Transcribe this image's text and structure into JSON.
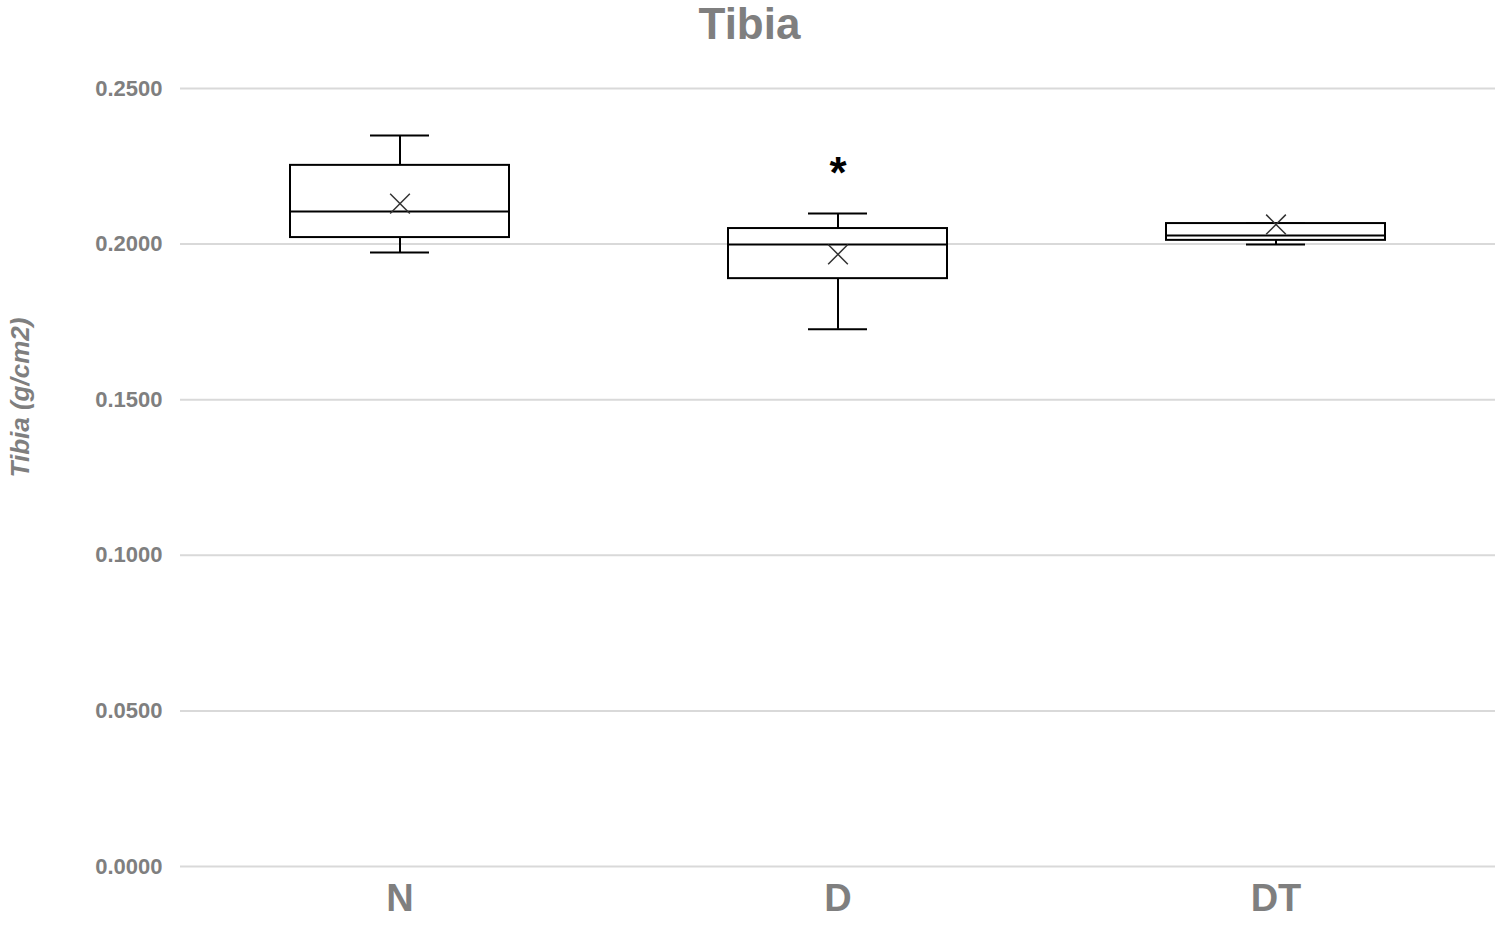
{
  "chart_data": {
    "type": "box",
    "title": "Tibia",
    "y_label": "Tibia (g/cm2)",
    "categories": [
      "N",
      "D",
      "DT"
    ],
    "whisker_low": [
      0.1973,
      0.1726,
      0.1999
    ],
    "q1": [
      0.2021,
      0.1889,
      0.2012
    ],
    "median": [
      0.2105,
      0.1999,
      0.2028
    ],
    "q3": [
      0.2253,
      0.205,
      0.2066
    ],
    "whisker_high": [
      0.2349,
      0.2098,
      0.2066
    ],
    "mean": [
      0.213,
      0.1967,
      0.2063
    ],
    "annotations": [
      {
        "category": "D",
        "text": "*"
      }
    ],
    "ylim": [
      0,
      0.25
    ],
    "yticks": [
      {
        "value": 0,
        "label": "0.0000"
      },
      {
        "value": 0.05,
        "label": "0.0500"
      },
      {
        "value": 0.1,
        "label": "0.1000"
      },
      {
        "value": 0.15,
        "label": "0.1500"
      },
      {
        "value": 0.2,
        "label": "0.2000"
      },
      {
        "value": 0.25,
        "label": "0.2500"
      }
    ],
    "grid": true
  }
}
